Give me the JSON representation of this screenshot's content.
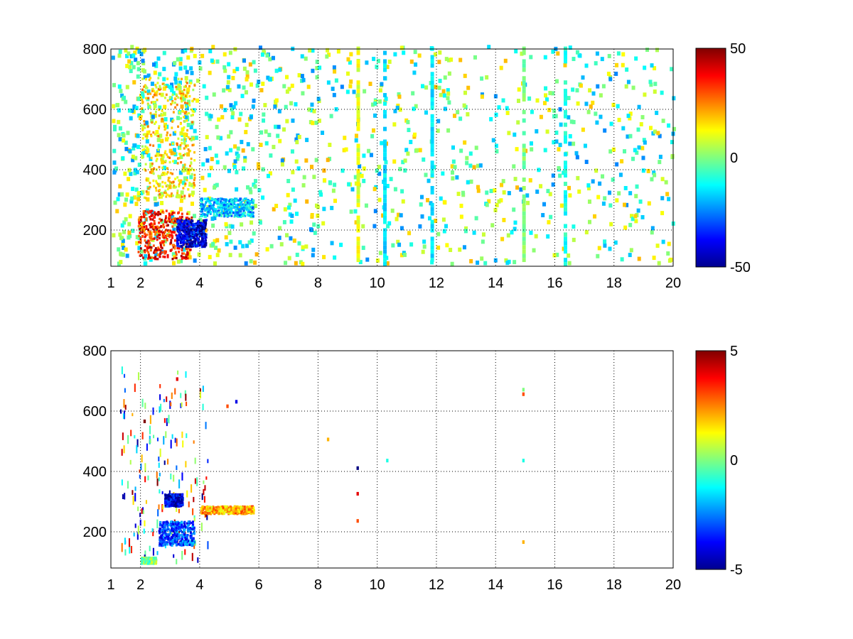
{
  "figure": {
    "background": "#ffffff",
    "colormap": "jet",
    "grid": "dotted"
  },
  "chart_data": [
    {
      "type": "heatmap",
      "title": "",
      "xlabel": "",
      "ylabel": "",
      "xlim": [
        1,
        20
      ],
      "ylim": [
        80,
        800
      ],
      "x_ticks": [
        1,
        2,
        4,
        6,
        8,
        10,
        12,
        14,
        16,
        18,
        20
      ],
      "x_tick_labels": [
        "1",
        "2",
        "4",
        "6",
        "8",
        "10",
        "12",
        "14",
        "16",
        "18",
        "20"
      ],
      "y_ticks": [
        200,
        400,
        600,
        800
      ],
      "y_tick_labels": [
        "200",
        "400",
        "600",
        "800"
      ],
      "grid": true,
      "color_range": [
        -50,
        50
      ],
      "colorbar_ticks": [
        -50,
        0,
        50
      ],
      "colorbar_tick_labels": [
        "-50",
        "0",
        "50"
      ],
      "description_values": {
        "streaks": [
          {
            "x": 9.3,
            "value": 10
          },
          {
            "x": 10.2,
            "value": -15
          },
          {
            "x": 11.8,
            "value": -15
          },
          {
            "x": 14.9,
            "value": 0
          },
          {
            "x": 16.3,
            "value": -10
          }
        ],
        "features": [
          {
            "x_from": 1.9,
            "x_to": 3.7,
            "y_from": 100,
            "y_to": 260,
            "value": 35
          },
          {
            "x_from": 3.2,
            "x_to": 4.2,
            "y_from": 140,
            "y_to": 230,
            "value": -40
          },
          {
            "x_from": 4.0,
            "x_to": 5.8,
            "y_from": 240,
            "y_to": 300,
            "value": -18
          },
          {
            "x_from": 2.0,
            "x_to": 3.8,
            "y_from": 300,
            "y_to": 700,
            "value": 15
          }
        ]
      }
    },
    {
      "type": "heatmap",
      "title": "",
      "xlabel": "",
      "ylabel": "",
      "xlim": [
        1,
        20
      ],
      "ylim": [
        80,
        800
      ],
      "x_ticks": [
        1,
        2,
        4,
        6,
        8,
        10,
        12,
        14,
        16,
        18,
        20
      ],
      "x_tick_labels": [
        "1",
        "2",
        "4",
        "6",
        "8",
        "10",
        "12",
        "14",
        "16",
        "18",
        "20"
      ],
      "y_ticks": [
        200,
        400,
        600,
        800
      ],
      "y_tick_labels": [
        "200",
        "400",
        "600",
        "800"
      ],
      "grid": true,
      "color_range": [
        -5,
        5
      ],
      "colorbar_ticks": [
        -5,
        0,
        5
      ],
      "colorbar_tick_labels": [
        "-5",
        "0",
        "5"
      ],
      "description_values": {
        "features": [
          {
            "x_from": 4.0,
            "x_to": 5.8,
            "y_from": 255,
            "y_to": 280,
            "value": 2
          },
          {
            "x_from": 2.6,
            "x_to": 3.8,
            "y_from": 150,
            "y_to": 230,
            "value": -3
          },
          {
            "x_from": 2.0,
            "x_to": 2.5,
            "y_from": 90,
            "y_to": 110,
            "value": 0
          },
          {
            "x_from": 2.8,
            "x_to": 3.4,
            "y_from": 280,
            "y_to": 320,
            "value": -4
          }
        ],
        "points": [
          {
            "x": 4.9,
            "y": 610,
            "value": 3
          },
          {
            "x": 5.2,
            "y": 625,
            "value": -4
          },
          {
            "x": 9.3,
            "y": 320,
            "value": 4
          },
          {
            "x": 9.3,
            "y": 230,
            "value": 3
          },
          {
            "x": 9.3,
            "y": 405,
            "value": -5
          },
          {
            "x": 10.3,
            "y": 430,
            "value": -1
          },
          {
            "x": 14.9,
            "y": 650,
            "value": 3
          },
          {
            "x": 14.9,
            "y": 665,
            "value": 0
          },
          {
            "x": 14.9,
            "y": 430,
            "value": -1
          },
          {
            "x": 14.9,
            "y": 160,
            "value": 2
          },
          {
            "x": 8.3,
            "y": 500,
            "value": 2
          },
          {
            "x": 2.1,
            "y": 560,
            "value": 5
          },
          {
            "x": 3.2,
            "y": 700,
            "value": 4
          }
        ]
      }
    }
  ]
}
